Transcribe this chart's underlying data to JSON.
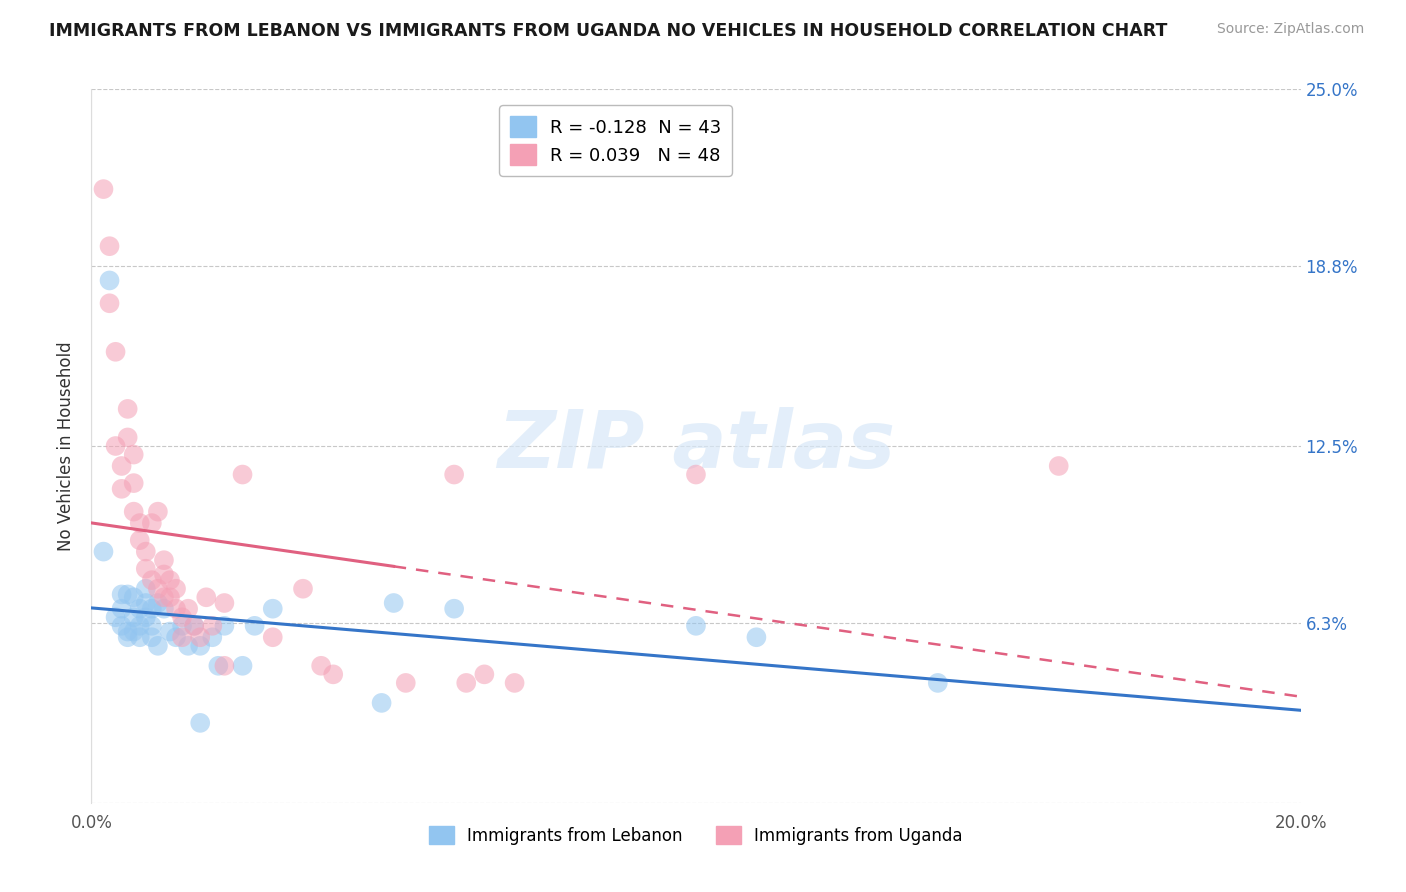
{
  "title": "IMMIGRANTS FROM LEBANON VS IMMIGRANTS FROM UGANDA NO VEHICLES IN HOUSEHOLD CORRELATION CHART",
  "source": "Source: ZipAtlas.com",
  "ylabel": "No Vehicles in Household",
  "xlim": [
    0.0,
    0.2
  ],
  "ylim": [
    0.0,
    0.25
  ],
  "yticks": [
    0.0,
    0.063,
    0.125,
    0.188,
    0.25
  ],
  "yticklabels": [
    "",
    "6.3%",
    "12.5%",
    "18.8%",
    "25.0%"
  ],
  "legend_r_entries": [
    {
      "label": "R = -0.128  N = 43",
      "color": "#92c5f0"
    },
    {
      "label": "R = 0.039   N = 48",
      "color": "#f4a0b5"
    }
  ],
  "lebanon_color": "#92c5f0",
  "uganda_color": "#f4a0b5",
  "lebanon_line_color": "#3575c8",
  "uganda_line_color": "#e06080",
  "lebanon_scatter": [
    [
      0.002,
      0.088
    ],
    [
      0.003,
      0.183
    ],
    [
      0.004,
      0.065
    ],
    [
      0.005,
      0.073
    ],
    [
      0.005,
      0.068
    ],
    [
      0.005,
      0.062
    ],
    [
      0.006,
      0.073
    ],
    [
      0.006,
      0.06
    ],
    [
      0.006,
      0.058
    ],
    [
      0.007,
      0.072
    ],
    [
      0.007,
      0.065
    ],
    [
      0.007,
      0.06
    ],
    [
      0.008,
      0.068
    ],
    [
      0.008,
      0.062
    ],
    [
      0.008,
      0.058
    ],
    [
      0.009,
      0.075
    ],
    [
      0.009,
      0.07
    ],
    [
      0.009,
      0.065
    ],
    [
      0.01,
      0.068
    ],
    [
      0.01,
      0.062
    ],
    [
      0.01,
      0.058
    ],
    [
      0.011,
      0.07
    ],
    [
      0.011,
      0.055
    ],
    [
      0.012,
      0.068
    ],
    [
      0.013,
      0.06
    ],
    [
      0.014,
      0.058
    ],
    [
      0.015,
      0.062
    ],
    [
      0.016,
      0.055
    ],
    [
      0.017,
      0.062
    ],
    [
      0.018,
      0.055
    ],
    [
      0.02,
      0.058
    ],
    [
      0.021,
      0.048
    ],
    [
      0.022,
      0.062
    ],
    [
      0.025,
      0.048
    ],
    [
      0.027,
      0.062
    ],
    [
      0.03,
      0.068
    ],
    [
      0.048,
      0.035
    ],
    [
      0.05,
      0.07
    ],
    [
      0.06,
      0.068
    ],
    [
      0.1,
      0.062
    ],
    [
      0.11,
      0.058
    ],
    [
      0.14,
      0.042
    ],
    [
      0.018,
      0.028
    ]
  ],
  "uganda_scatter": [
    [
      0.002,
      0.215
    ],
    [
      0.003,
      0.195
    ],
    [
      0.003,
      0.175
    ],
    [
      0.004,
      0.158
    ],
    [
      0.004,
      0.125
    ],
    [
      0.005,
      0.118
    ],
    [
      0.005,
      0.11
    ],
    [
      0.006,
      0.138
    ],
    [
      0.006,
      0.128
    ],
    [
      0.007,
      0.122
    ],
    [
      0.007,
      0.112
    ],
    [
      0.007,
      0.102
    ],
    [
      0.008,
      0.098
    ],
    [
      0.008,
      0.092
    ],
    [
      0.009,
      0.088
    ],
    [
      0.009,
      0.082
    ],
    [
      0.01,
      0.078
    ],
    [
      0.01,
      0.098
    ],
    [
      0.011,
      0.102
    ],
    [
      0.011,
      0.075
    ],
    [
      0.012,
      0.085
    ],
    [
      0.012,
      0.08
    ],
    [
      0.012,
      0.072
    ],
    [
      0.013,
      0.078
    ],
    [
      0.013,
      0.072
    ],
    [
      0.014,
      0.068
    ],
    [
      0.014,
      0.075
    ],
    [
      0.015,
      0.065
    ],
    [
      0.015,
      0.058
    ],
    [
      0.016,
      0.068
    ],
    [
      0.017,
      0.062
    ],
    [
      0.018,
      0.058
    ],
    [
      0.019,
      0.072
    ],
    [
      0.02,
      0.062
    ],
    [
      0.022,
      0.07
    ],
    [
      0.022,
      0.048
    ],
    [
      0.025,
      0.115
    ],
    [
      0.03,
      0.058
    ],
    [
      0.035,
      0.075
    ],
    [
      0.038,
      0.048
    ],
    [
      0.04,
      0.045
    ],
    [
      0.052,
      0.042
    ],
    [
      0.06,
      0.115
    ],
    [
      0.062,
      0.042
    ],
    [
      0.065,
      0.045
    ],
    [
      0.07,
      0.042
    ],
    [
      0.1,
      0.115
    ],
    [
      0.16,
      0.118
    ]
  ]
}
